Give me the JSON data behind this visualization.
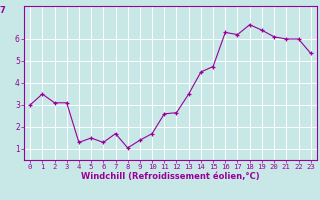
{
  "x": [
    0,
    1,
    2,
    3,
    4,
    5,
    6,
    7,
    8,
    9,
    10,
    11,
    12,
    13,
    14,
    15,
    16,
    17,
    18,
    19,
    20,
    21,
    22,
    23
  ],
  "y": [
    3.0,
    3.5,
    3.1,
    3.1,
    1.3,
    1.5,
    1.3,
    1.7,
    1.05,
    1.4,
    1.7,
    2.6,
    2.65,
    3.5,
    4.5,
    4.75,
    6.3,
    6.2,
    6.65,
    6.4,
    6.1,
    6.0,
    6.0,
    5.35
  ],
  "line_color": "#990099",
  "marker": "+",
  "marker_color": "#990099",
  "bg_color": "#c8e8e8",
  "grid_color": "#ffffff",
  "xlabel": "Windchill (Refroidissement éolien,°C)",
  "ylim": [
    0.5,
    7.5
  ],
  "xlim": [
    -0.5,
    23.5
  ],
  "yticks": [
    1,
    2,
    3,
    4,
    5,
    6
  ],
  "xticks": [
    0,
    1,
    2,
    3,
    4,
    5,
    6,
    7,
    8,
    9,
    10,
    11,
    12,
    13,
    14,
    15,
    16,
    17,
    18,
    19,
    20,
    21,
    22,
    23
  ],
  "tick_color": "#990099",
  "label_color": "#990099",
  "spine_color": "#990099"
}
